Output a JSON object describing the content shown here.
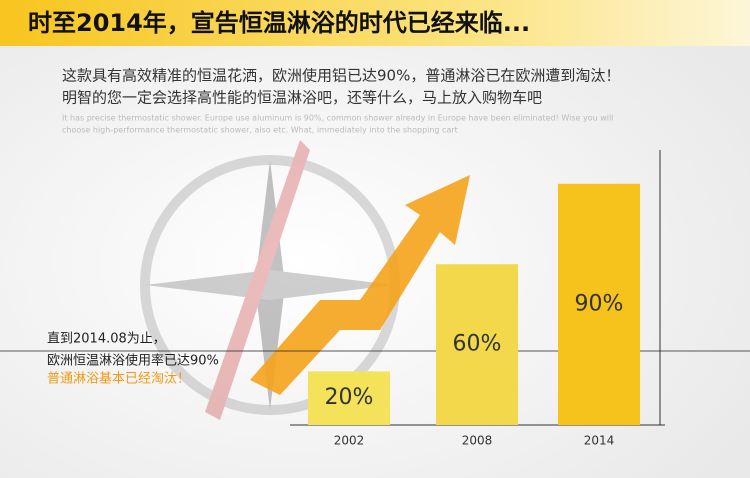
{
  "header": {
    "title": "时至2014年，宣告恒温淋浴的时代已经来临..."
  },
  "intro": {
    "lines": [
      "这款具有高效精准的恒温花洒，欧洲使用铝已达90%，普通淋浴已在欧洲遭到淘汰！",
      "明智的您一定会选择高性能的恒温淋浴吧，还等什么，马上放入购物车吧"
    ],
    "english": [
      "It has precise thermostatic shower. Europe use aluminum is 90%, common shower already in Europe have been eliminated! Wise you will",
      "choose high-performance thermostatic shower, also etc. What, immediately into the shopping cart"
    ]
  },
  "chart_data": {
    "type": "bar",
    "categories": [
      "2002",
      "2008",
      "2014"
    ],
    "values": [
      20,
      60,
      90
    ],
    "value_labels": [
      "20%",
      "60%",
      "90%"
    ],
    "colors": [
      "#f3e25a",
      "#f2d84a",
      "#f6c21c"
    ],
    "ylim": [
      0,
      100
    ]
  },
  "annotation": {
    "lines": [
      "直到2014.08为止，",
      "欧洲恒温淋浴使用率已达90%",
      "普通淋浴基本已经淘汰！"
    ]
  }
}
